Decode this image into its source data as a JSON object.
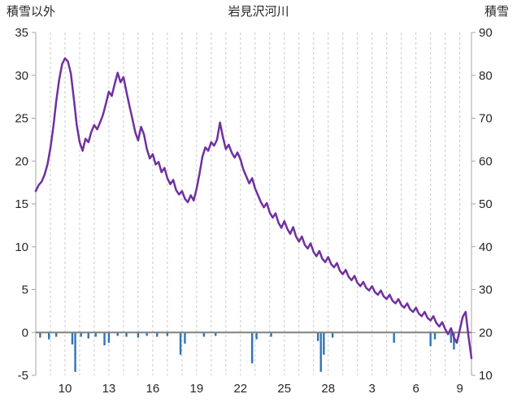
{
  "header": {
    "left_axis_title": "積雪以外",
    "title": "岩見沢河川",
    "right_axis_title": "積雪"
  },
  "colors": {
    "line": "#7030A0",
    "bar": "#2E75B6",
    "gridline": "#c9c9c9",
    "axis": "#a6a6a6",
    "zero_line": "#808080",
    "text": "#262626",
    "background": "#ffffff"
  },
  "chart_data": {
    "type": "line",
    "title": "岩見沢河川",
    "left_axis": {
      "label": "積雪以外",
      "min": -5,
      "max": 35,
      "ticks": [
        35,
        30,
        25,
        20,
        15,
        10,
        5,
        0,
        -5
      ]
    },
    "right_axis": {
      "label": "積雪",
      "min": 10,
      "max": 90,
      "ticks": [
        90,
        80,
        70,
        60,
        50,
        40,
        30,
        20,
        10
      ]
    },
    "x_axis": {
      "tick_labels": [
        "10",
        "13",
        "16",
        "19",
        "22",
        "25",
        "28",
        "3",
        "6",
        "9"
      ],
      "tick_days": [
        2,
        5,
        8,
        11,
        14,
        17,
        20,
        23,
        26,
        29
      ],
      "day_min": 0,
      "day_max": 29.8,
      "grid_interval": 1,
      "grid_on": true
    },
    "line_series": {
      "name": "積雪",
      "axis": "right",
      "color": "#7030A0",
      "x_start": 0,
      "x_step": 0.2,
      "values": [
        53,
        54.4,
        55.2,
        56.8,
        59.2,
        63,
        68,
        74,
        79,
        82.6,
        84,
        83.2,
        80.4,
        74.6,
        68.4,
        64.4,
        62.4,
        65.2,
        64.4,
        66.8,
        68.4,
        67.4,
        69,
        70.8,
        73.4,
        76.2,
        75.2,
        78,
        80.6,
        78.4,
        79.6,
        76.2,
        73,
        70,
        66.8,
        64.8,
        68,
        66.2,
        62.8,
        60.6,
        61.6,
        59.2,
        59.8,
        57.4,
        58.4,
        56,
        54.6,
        55.6,
        53.2,
        52.2,
        53,
        51.2,
        50.4,
        52,
        50.8,
        53.6,
        57,
        61,
        63.2,
        62.4,
        64.4,
        63.6,
        65,
        69,
        65.6,
        62.8,
        63.8,
        62,
        60.8,
        62,
        60.4,
        58,
        56.4,
        54.8,
        56,
        53.6,
        52,
        50.4,
        49.2,
        50.2,
        48,
        46.8,
        47.8,
        45.6,
        44.4,
        46,
        44.2,
        43,
        44.6,
        42.4,
        41.2,
        42.4,
        40.4,
        39.6,
        40.8,
        38.8,
        37.8,
        39,
        37.2,
        36.4,
        37.6,
        36,
        35.2,
        36.2,
        34.4,
        33.6,
        34.6,
        33,
        32.2,
        33.2,
        31.6,
        30.8,
        31.8,
        30.4,
        29.8,
        30.8,
        29.4,
        28.8,
        29.8,
        28.4,
        27.8,
        28.8,
        27.4,
        26.8,
        27.8,
        26.4,
        25.8,
        26.8,
        25.4,
        24.8,
        25.8,
        24.4,
        23.8,
        24.8,
        23.4,
        22.8,
        23.8,
        22.2,
        21.4,
        22.4,
        20.8,
        19.6,
        21,
        18.8,
        17.6,
        20.6,
        23.6,
        24.8,
        19,
        14
      ]
    },
    "bar_series": {
      "name": "積雪以外",
      "axis": "left",
      "color": "#2E75B6",
      "points": [
        [
          0.3,
          -0.6
        ],
        [
          0.9,
          -0.8
        ],
        [
          1.4,
          -0.5
        ],
        [
          2.5,
          -1.4
        ],
        [
          2.7,
          -4.6
        ],
        [
          3.1,
          -0.5
        ],
        [
          3.6,
          -0.7
        ],
        [
          4.1,
          -0.5
        ],
        [
          4.7,
          -1.5
        ],
        [
          5.0,
          -1.2
        ],
        [
          5.6,
          -0.4
        ],
        [
          6.2,
          -0.5
        ],
        [
          7.0,
          -0.6
        ],
        [
          7.6,
          -0.4
        ],
        [
          8.3,
          -0.5
        ],
        [
          9.0,
          -0.4
        ],
        [
          9.9,
          -2.6
        ],
        [
          10.2,
          -1.3
        ],
        [
          11.5,
          -0.5
        ],
        [
          12.3,
          -0.4
        ],
        [
          14.8,
          -3.6
        ],
        [
          15.1,
          -0.8
        ],
        [
          16.1,
          -0.5
        ],
        [
          19.3,
          -1.0
        ],
        [
          19.5,
          -4.6
        ],
        [
          19.7,
          -2.6
        ],
        [
          20.3,
          -0.6
        ],
        [
          24.5,
          -1.2
        ],
        [
          27.0,
          -1.6
        ],
        [
          27.3,
          -0.8
        ],
        [
          28.4,
          -1.2
        ],
        [
          28.6,
          -2.0
        ]
      ]
    }
  }
}
